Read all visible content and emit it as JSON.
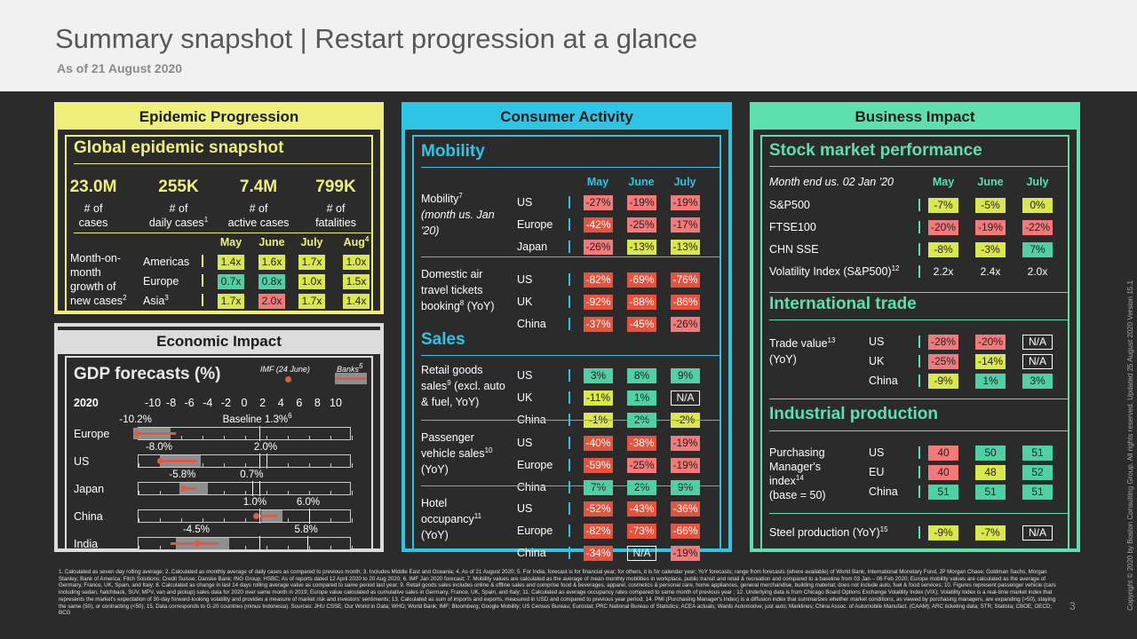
{
  "header": {
    "title": "Summary snapshot | Restart progression at a glance",
    "subtitle": "As of 21 August 2020"
  },
  "colors": {
    "epidemic": "#eef07a",
    "economic": "#dcdcdc",
    "consumer": "#2ec4e6",
    "business": "#5de0ae",
    "green": "#4fd1a4",
    "yellow": "#dbe84c",
    "pink": "#f47a7a",
    "red": "#e8513b"
  },
  "epidemic": {
    "heading": "Epidemic Progression",
    "section": "Global epidemic snapshot",
    "stats": [
      {
        "value": "23.0M",
        "l1": "# of",
        "l2": "cases",
        "sup": ""
      },
      {
        "value": "255K",
        "l1": "# of",
        "l2": "daily cases",
        "sup": "1"
      },
      {
        "value": "7.4M",
        "l1": "# of",
        "l2": "active cases",
        "sup": ""
      },
      {
        "value": "799K",
        "l1": "# of",
        "l2": "fatalities",
        "sup": ""
      }
    ],
    "months": [
      "May",
      "June",
      "July",
      "Aug"
    ],
    "month_sup": "4",
    "growth_label": [
      "Month-on-",
      "month",
      "growth of",
      "new cases"
    ],
    "growth_sup": "2",
    "rows": [
      {
        "name": "Americas",
        "sup": "",
        "vals": [
          "1.4x",
          "1.6x",
          "1.7x",
          "1.0x"
        ],
        "colors": [
          "y",
          "y",
          "y",
          "y"
        ]
      },
      {
        "name": "Europe",
        "sup": "",
        "vals": [
          "0.7x",
          "0.8x",
          "1.0x",
          "1.5x"
        ],
        "colors": [
          "g",
          "g",
          "y",
          "y"
        ]
      },
      {
        "name": "Asia",
        "sup": "3",
        "vals": [
          "1.7x",
          "2.0x",
          "1.7x",
          "1.4x"
        ],
        "colors": [
          "y",
          "r",
          "y",
          "y"
        ]
      }
    ]
  },
  "economic": {
    "heading": "Economic Impact",
    "section": "GDP forecasts (%)",
    "imf_legend": "IMF (24 June)",
    "banks_legend": "Banks",
    "banks_sup": "5",
    "year": "2020",
    "axis": [
      "-10",
      "-8",
      "-6",
      "-4",
      "-2",
      "0",
      "2",
      "4",
      "6",
      "8",
      "10"
    ],
    "baseline_label": "Baseline 1.3%",
    "baseline_sup": "6",
    "countries": [
      {
        "name": "Europe",
        "imf": -10.2,
        "bank_lo": -10,
        "bank_hi": -6.5,
        "rng_lo": -10.5,
        "rng_hi": -7,
        "lo_label": "-10.2%",
        "hi_label": ""
      },
      {
        "name": "US",
        "imf": -8.0,
        "bank_lo": -8,
        "bank_hi": -4.5,
        "rng_lo": -8,
        "rng_hi": -4.2,
        "lo_label": "-8.0%",
        "hi_label": "2.0%",
        "hi": 2.0
      },
      {
        "name": "Japan",
        "imf": -5.8,
        "bank_lo": -6,
        "bank_hi": -4.5,
        "rng_lo": -6.2,
        "rng_hi": -3.5,
        "lo_label": "-5.8%",
        "hi_label": "0.7%",
        "hi": 0.7
      },
      {
        "name": "China",
        "imf": 1.0,
        "bank_lo": 1,
        "bank_hi": 3,
        "rng_lo": 1.5,
        "rng_hi": 3.5,
        "lo_label": "1.0%",
        "hi_label": "6.0%",
        "hi": 6.0
      },
      {
        "name": "India",
        "imf": -4.5,
        "bank_lo": -7,
        "bank_hi": -2.5,
        "rng_lo": -6.5,
        "rng_hi": -1.5,
        "lo_label": "-4.5%",
        "hi_label": "5.8%",
        "hi": 5.8
      }
    ]
  },
  "consumer": {
    "heading": "Consumer Activity",
    "mobility_title": "Mobility",
    "sales_title": "Sales",
    "months": [
      "May",
      "June",
      "July"
    ],
    "groups": [
      {
        "label": [
          "Mobility",
          "(month us. Jan",
          "'20)"
        ],
        "sup": "7",
        "italic_from": 1,
        "rows": [
          {
            "name": "US",
            "vals": [
              "-27%",
              "-19%",
              "-19%"
            ],
            "colors": [
              "r",
              "r",
              "r"
            ]
          },
          {
            "name": "Europe",
            "vals": [
              "-42%",
              "-25%",
              "-17%"
            ],
            "colors": [
              "rr",
              "r",
              "r"
            ]
          },
          {
            "name": "Japan",
            "vals": [
              "-26%",
              "-13%",
              "-13%"
            ],
            "colors": [
              "r",
              "y",
              "y"
            ]
          }
        ]
      },
      {
        "label": [
          "Domestic air",
          "travel tickets",
          "booking (YoY)"
        ],
        "sup": "8",
        "rows": [
          {
            "name": "US",
            "vals": [
              "-82%",
              "-69%",
              "-76%"
            ],
            "colors": [
              "rr",
              "rr",
              "rr"
            ]
          },
          {
            "name": "UK",
            "vals": [
              "-92%",
              "-88%",
              "-86%"
            ],
            "colors": [
              "rr",
              "rr",
              "rr"
            ]
          },
          {
            "name": "China",
            "vals": [
              "-37%",
              "-45%",
              "-26%"
            ],
            "colors": [
              "rr",
              "rr",
              "r"
            ]
          }
        ]
      },
      {
        "label": [
          "Retail goods",
          "sales (excl. auto",
          "& fuel, YoY)"
        ],
        "sup": "9",
        "rows": [
          {
            "name": "US",
            "vals": [
              "3%",
              "8%",
              "9%"
            ],
            "colors": [
              "g",
              "g",
              "g"
            ]
          },
          {
            "name": "UK",
            "vals": [
              "-11%",
              "1%",
              "N/A"
            ],
            "colors": [
              "y",
              "g",
              "n"
            ]
          },
          {
            "name": "China",
            "vals": [
              "-1%",
              "2%",
              "-2%"
            ],
            "colors": [
              "y",
              "g",
              "y"
            ]
          }
        ]
      },
      {
        "label": [
          "Passenger",
          "vehicle sales",
          "(YoY)"
        ],
        "sup": "10",
        "rows": [
          {
            "name": "US",
            "vals": [
              "-40%",
              "-38%",
              "-19%"
            ],
            "colors": [
              "rr",
              "rr",
              "r"
            ]
          },
          {
            "name": "Europe",
            "vals": [
              "-59%",
              "-25%",
              "-19%"
            ],
            "colors": [
              "rr",
              "r",
              "r"
            ]
          },
          {
            "name": "China",
            "vals": [
              "7%",
              "2%",
              "9%"
            ],
            "colors": [
              "g",
              "g",
              "g"
            ]
          }
        ]
      },
      {
        "label": [
          "Hotel",
          "occupancy",
          "(YoY)"
        ],
        "sup": "11",
        "rows": [
          {
            "name": "US",
            "vals": [
              "-52%",
              "-43%",
              "-36%"
            ],
            "colors": [
              "rr",
              "rr",
              "rr"
            ]
          },
          {
            "name": "Europe",
            "vals": [
              "-82%",
              "-73%",
              "-66%"
            ],
            "colors": [
              "rr",
              "rr",
              "rr"
            ]
          },
          {
            "name": "China",
            "vals": [
              "-34%",
              "N/A",
              "-19%"
            ],
            "colors": [
              "rr",
              "n",
              "r"
            ]
          }
        ]
      }
    ]
  },
  "business": {
    "heading": "Business Impact",
    "stock_title": "Stock market performance",
    "trade_title": "International trade",
    "ind_title": "Industrial production",
    "stock_header": "Month end us. 02 Jan '20",
    "months": [
      "May",
      "June",
      "July"
    ],
    "stocks": [
      {
        "name": "S&P500",
        "vals": [
          "-7%",
          "-5%",
          "0%"
        ],
        "colors": [
          "y",
          "y",
          "y"
        ]
      },
      {
        "name": "FTSE100",
        "vals": [
          "-20%",
          "-19%",
          "-22%"
        ],
        "colors": [
          "r",
          "r",
          "r"
        ]
      },
      {
        "name": "CHN SSE",
        "vals": [
          "-8%",
          "-3%",
          "7%"
        ],
        "colors": [
          "y",
          "y",
          "g"
        ]
      },
      {
        "name": "Volatility Index (S&P500)",
        "sup": "12",
        "vals": [
          "2.2x",
          "2.4x",
          "2.0x"
        ],
        "colors": [
          "p",
          "p",
          "p"
        ]
      }
    ],
    "trade_label": [
      "Trade value",
      "(YoY)"
    ],
    "trade_sup": "13",
    "trade": [
      {
        "name": "US",
        "vals": [
          "-28%",
          "-20%",
          "N/A"
        ],
        "colors": [
          "r",
          "r",
          "n"
        ]
      },
      {
        "name": "UK",
        "vals": [
          "-25%",
          "-14%",
          "N/A"
        ],
        "colors": [
          "r",
          "y",
          "n"
        ]
      },
      {
        "name": "China",
        "vals": [
          "-9%",
          "1%",
          "3%"
        ],
        "colors": [
          "y",
          "g",
          "g"
        ]
      }
    ],
    "pmi_label": [
      "Purchasing",
      "Manager's",
      "index",
      "(base = 50)"
    ],
    "pmi_sup": "14",
    "pmi": [
      {
        "name": "US",
        "vals": [
          "40",
          "50",
          "51"
        ],
        "colors": [
          "r",
          "g",
          "g"
        ]
      },
      {
        "name": "EU",
        "vals": [
          "40",
          "48",
          "52"
        ],
        "colors": [
          "r",
          "y",
          "g"
        ]
      },
      {
        "name": "China",
        "vals": [
          "51",
          "51",
          "51"
        ],
        "colors": [
          "g",
          "g",
          "g"
        ]
      }
    ],
    "steel_label": "Steel production (YoY)",
    "steel_sup": "15",
    "steel": {
      "vals": [
        "-9%",
        "-7%",
        "N/A"
      ],
      "colors": [
        "y",
        "y",
        "n"
      ]
    }
  },
  "footnote": "1. Calculated as seven day rolling average; 2. Calculated as monthly average of daily cases as compared to previous month; 3. Includes Middle East and Oceania; 4. As of 21 August 2020; 5. For India, forecast is for financial year; for others, it is for calendar year; YoY forecasts; range from forecasts (where available) of World Bank, International Monetary Fund, JP Morgan Chase; Goldman Sachs, Morgan Stanley; Bank of America; Fitch Solutions; Credit Suisse; Danske Bank; ING Group; HSBC; As of reports dated 12 April 2020 to 20 Aug 2020; 6. IMF Jan 2020 forecast; 7. Mobility values are calculated as the average of mean monthly mobilities in workplace, public transit and retail & recreation and compared to a baseline from 03 Jan – 06 Feb 2020; Europe mobility values are calculated as the average of Germany, France, UK, Spain, and Italy; 8. Calculated as change in last 14 days rolling average value as compared to same period last year; 9. Retail goods sales includes online & offline sales and comprise food & beverages, apparel, cosmetics & personal care, home appliances, general merchandise, building material; does not include auto, fuel & food services; 10. Figures represent passenger vehicle (cars including sedan, hatchback, SUV, MPV, van and pickup) sales data for 2020 over same month in 2019; Europe value calculated as cumulative sales in Germany, France, UK, Spain, and Italy; 11. Calculated as average occupancy rates compared to same month of previous year ; 12. Underlying data is from Chicago Board Options Exchange Volatility Index (VIX); Volatility Index is a real-time market index that represents the market's expectation of 30-day forward-looking volatility and provides a measure of market risk and investors' sentiments; 13. Calculated as sum of imports and exports, measured in USD and compared to previous year period; 14. PMI (Purchasing Manager's Index) is a diffusion index that summarizes whether market conditions, as viewed by purchasing managers, are expanding (>50), staying the same (50), or contracting (<50); 15. Data corresponds to G-20 countries (minus Indonesia). Sources: JHU CSSE; Our World in Data; WHO; World Bank; IMF; Bloomberg; Google Mobility; US Census Bureau; Eurostat; PRC National Bureau of Statistics; ACEA actuals; Wards Automotive; just auto; Marklines; China Assoc. of Automobile Manufact. (CAAM); ARC ticketing data; STR; Statista; CBOE; OECD; BCG",
  "page_number": "3",
  "copyright": "Copyright © 2020 by Boston Consulting Group. All rights reserved. Updated 25 August 2020 Version 15.1"
}
